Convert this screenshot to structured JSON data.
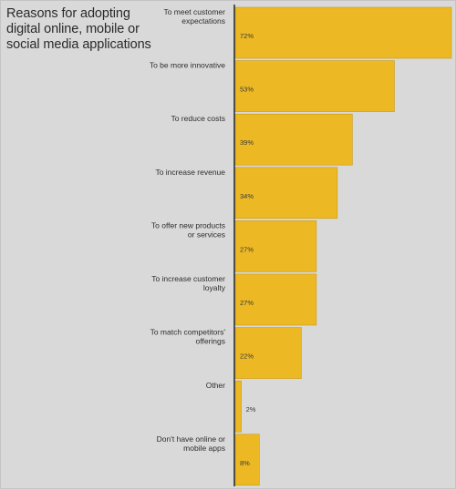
{
  "colors": {
    "bar": "#ecb824",
    "bar_edge": "#c99b16",
    "axis": "#1a1a1a",
    "background": "#d9d9d9"
  },
  "chart_data": {
    "type": "bar",
    "orientation": "horizontal",
    "title": "Reasons for adopting digital online, mobile or social media applications",
    "categories": [
      "To meet customer expectations",
      "To be more innovative",
      "To reduce costs",
      "To increase revenue",
      "To offer new products or services",
      "To increase customer loyalty",
      "To match competitors' offerings",
      "Other",
      "Don't have online or mobile apps"
    ],
    "values": [
      72,
      53,
      39,
      34,
      27,
      27,
      22,
      2,
      8
    ],
    "value_labels": [
      "72%",
      "53%",
      "39%",
      "34%",
      "27%",
      "27%",
      "22%",
      "2%",
      "8%"
    ],
    "xlim": [
      0,
      72
    ],
    "grid": false,
    "legend": "none"
  }
}
